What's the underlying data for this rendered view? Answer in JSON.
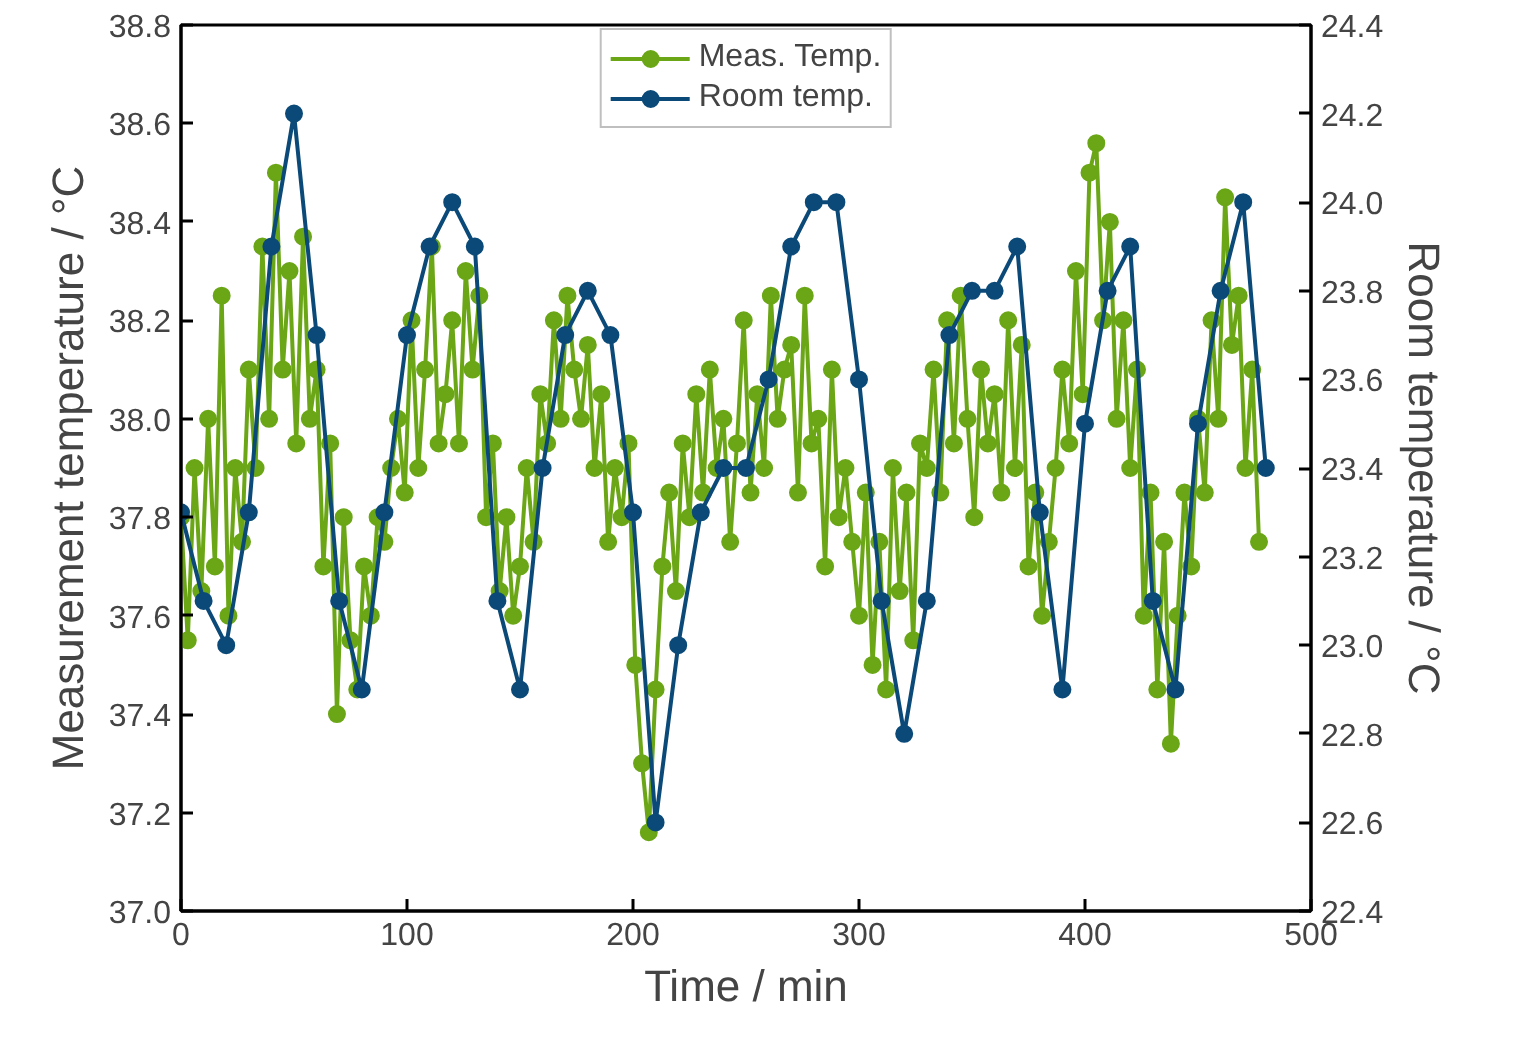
{
  "chart_data": {
    "type": "line",
    "xlabel": "Time / min",
    "ylabel": "Measurement temperature / °C",
    "y2label": "Room temperature / °C",
    "xlim": [
      0,
      500
    ],
    "xticks": [
      0,
      100,
      200,
      300,
      400,
      500
    ],
    "ylim": [
      37.0,
      38.8
    ],
    "yticks": [
      {
        "value": 37.0,
        "label": "37.0"
      },
      37.2,
      37.4,
      37.6,
      37.8,
      {
        "value": 38.0,
        "label": "38.0"
      },
      38.2,
      38.4,
      38.6,
      38.8
    ],
    "y2lim": [
      22.4,
      24.4
    ],
    "y2ticks": [
      22.4,
      22.6,
      22.8,
      {
        "value": 23.0,
        "label": "23.0"
      },
      23.2,
      23.4,
      23.6,
      23.8,
      {
        "value": 24.0,
        "label": "24.0"
      },
      24.2,
      24.4
    ],
    "grid": false,
    "legend": "top",
    "marker": "circle",
    "line_style": "solid",
    "series": [
      {
        "name": "Meas. Temp.",
        "color": "#6aa616",
        "x": [
          0,
          3,
          6,
          9,
          12,
          15,
          18,
          21,
          24,
          27,
          30,
          33,
          36,
          39,
          42,
          45,
          48,
          51,
          54,
          57,
          60,
          63,
          66,
          69,
          72,
          75,
          78,
          81,
          84,
          87,
          90,
          93,
          96,
          99,
          102,
          105,
          108,
          111,
          114,
          117,
          120,
          123,
          126,
          129,
          132,
          135,
          138,
          141,
          144,
          147,
          150,
          153,
          156,
          159,
          162,
          165,
          168,
          171,
          174,
          177,
          180,
          183,
          186,
          189,
          192,
          195,
          198,
          201,
          204,
          207,
          210,
          213,
          216,
          219,
          222,
          225,
          228,
          231,
          234,
          237,
          240,
          243,
          246,
          249,
          252,
          255,
          258,
          261,
          264,
          267,
          270,
          273,
          276,
          279,
          282,
          285,
          288,
          291,
          294,
          297,
          300,
          303,
          306,
          309,
          312,
          315,
          318,
          321,
          324,
          327,
          330,
          333,
          336,
          339,
          342,
          345,
          348,
          351,
          354,
          357,
          360,
          363,
          366,
          369,
          372,
          375,
          378,
          381,
          384,
          387,
          390,
          393,
          396,
          399,
          402,
          405,
          408,
          411,
          414,
          417,
          420,
          423,
          426,
          429,
          432,
          435,
          438,
          441,
          444,
          447,
          450,
          453,
          456,
          459,
          462,
          465,
          468,
          471,
          474,
          477
        ],
        "values": [
          37.8,
          37.55,
          37.9,
          37.65,
          38.0,
          37.7,
          38.25,
          37.6,
          37.9,
          37.75,
          38.1,
          37.9,
          38.35,
          38.0,
          38.5,
          38.1,
          38.3,
          37.95,
          38.37,
          38.0,
          38.1,
          37.7,
          37.95,
          37.4,
          37.8,
          37.55,
          37.45,
          37.7,
          37.6,
          37.8,
          37.75,
          37.9,
          38.0,
          37.85,
          38.2,
          37.9,
          38.1,
          38.35,
          37.95,
          38.05,
          38.2,
          37.95,
          38.3,
          38.1,
          38.25,
          37.8,
          37.95,
          37.65,
          37.8,
          37.6,
          37.7,
          37.9,
          37.75,
          38.05,
          37.95,
          38.2,
          38.0,
          38.25,
          38.1,
          38.0,
          38.15,
          37.9,
          38.05,
          37.75,
          37.9,
          37.8,
          37.95,
          37.5,
          37.3,
          37.16,
          37.45,
          37.7,
          37.85,
          37.65,
          37.95,
          37.8,
          38.05,
          37.85,
          38.1,
          37.9,
          38.0,
          37.75,
          37.95,
          38.2,
          37.85,
          38.05,
          37.9,
          38.25,
          38.0,
          38.1,
          38.15,
          37.85,
          38.25,
          37.95,
          38.0,
          37.7,
          38.1,
          37.8,
          37.9,
          37.75,
          37.6,
          37.85,
          37.5,
          37.75,
          37.45,
          37.9,
          37.65,
          37.85,
          37.55,
          37.95,
          37.9,
          38.1,
          37.85,
          38.2,
          37.95,
          38.25,
          38.0,
          37.8,
          38.1,
          37.95,
          38.05,
          37.85,
          38.2,
          37.9,
          38.15,
          37.7,
          37.85,
          37.6,
          37.75,
          37.9,
          38.1,
          37.95,
          38.3,
          38.05,
          38.5,
          38.56,
          38.2,
          38.4,
          38.0,
          38.2,
          37.9,
          38.1,
          37.6,
          37.85,
          37.45,
          37.75,
          37.34,
          37.6,
          37.85,
          37.7,
          38.0,
          37.85,
          38.2,
          38.0,
          38.45,
          38.15,
          38.25,
          37.9,
          38.1,
          37.75
        ]
      },
      {
        "name": "Room temp.",
        "color": "#0b4a78",
        "axis": "y2",
        "x": [
          0,
          10,
          20,
          30,
          40,
          50,
          60,
          70,
          80,
          90,
          100,
          110,
          120,
          130,
          140,
          150,
          160,
          170,
          180,
          190,
          200,
          210,
          220,
          230,
          240,
          250,
          260,
          270,
          280,
          290,
          300,
          310,
          320,
          330,
          340,
          350,
          360,
          370,
          380,
          390,
          400,
          410,
          420,
          430,
          440,
          450,
          460,
          470,
          480
        ],
        "values": [
          23.3,
          23.1,
          23.0,
          23.3,
          23.9,
          24.2,
          23.7,
          23.1,
          22.9,
          23.3,
          23.7,
          23.9,
          24.0,
          23.9,
          23.1,
          22.9,
          23.4,
          23.7,
          23.8,
          23.7,
          23.3,
          22.6,
          23.0,
          23.3,
          23.4,
          23.4,
          23.6,
          23.9,
          24.0,
          24.0,
          23.6,
          23.1,
          22.8,
          23.1,
          23.7,
          23.8,
          23.8,
          23.9,
          23.3,
          22.9,
          23.5,
          23.8,
          23.9,
          23.1,
          22.9,
          23.5,
          23.8,
          24.0,
          23.4
        ]
      }
    ]
  }
}
